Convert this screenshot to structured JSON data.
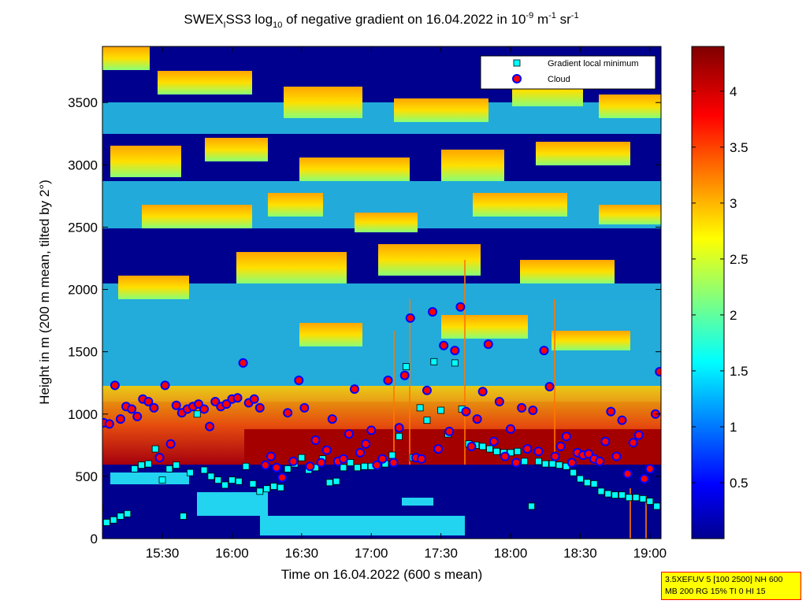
{
  "figure": {
    "title_main": "SWEX",
    "title_sub1": "I",
    "title_mid": "SS3 log",
    "title_sub2": "10",
    "title_rest": " of negative gradient on 16.04.2022 in 10",
    "title_exp1": "-9",
    "title_m": " m",
    "title_exp2": "-1",
    "title_sr": " sr",
    "title_exp3": "-1",
    "info_line1": "3.5XEFUV 5 [100 2500] NH 600",
    "info_line2": "MB 200 RG 15% TI 0 HI 15"
  },
  "chart_data": {
    "type": "heatmap",
    "xlabel": "Time on 16.04.2022 (600 s mean)",
    "ylabel": "Height in m (200 m mean, tilted by 2°)",
    "x_range_hours": [
      15.07,
      19.08
    ],
    "ylim": [
      0,
      3950
    ],
    "x_ticks": [
      "15:30",
      "16:00",
      "16:30",
      "17:00",
      "17:30",
      "18:00",
      "18:30",
      "19:00"
    ],
    "x_tick_hours": [
      15.5,
      16.0,
      16.5,
      17.0,
      17.5,
      18.0,
      18.5,
      19.0
    ],
    "y_ticks": [
      0,
      500,
      1000,
      1500,
      2000,
      2500,
      3000,
      3500
    ],
    "colorbar": {
      "range": [
        0,
        4.4
      ],
      "ticks": [
        "0.5",
        "1",
        "1.5",
        "2",
        "2.5",
        "3",
        "3.5",
        "4"
      ],
      "tick_values": [
        0.5,
        1,
        1.5,
        2,
        2.5,
        3,
        3.5,
        4
      ],
      "colormap": "jet"
    },
    "legend": {
      "position": "top-right",
      "entries": [
        "Gradient local minimum",
        "Cloud"
      ]
    },
    "colors": {
      "cloud_fill": "#ff0000",
      "cloud_edge": "#0000ff",
      "gradient_fill": "#00ffff",
      "low_background": "#00008f"
    },
    "series": [
      {
        "name": "Cloud",
        "hours": [
          15.08,
          15.12,
          15.16,
          15.2,
          15.24,
          15.28,
          15.32,
          15.36,
          15.4,
          15.44,
          15.48,
          15.52,
          15.56,
          15.6,
          15.64,
          15.68,
          15.72,
          15.76,
          15.8,
          15.84,
          15.88,
          15.92,
          15.96,
          16.0,
          16.04,
          16.08,
          16.12,
          16.16,
          16.2,
          16.24,
          16.28,
          16.32,
          16.36,
          16.4,
          16.44,
          16.48,
          16.52,
          16.56,
          16.6,
          16.64,
          16.68,
          16.72,
          16.76,
          16.8,
          16.84,
          16.88,
          16.92,
          16.96,
          17.0,
          17.04,
          17.08,
          17.12,
          17.16,
          17.2,
          17.24,
          17.28,
          17.32,
          17.36,
          17.4,
          17.44,
          17.48,
          17.52,
          17.56,
          17.6,
          17.64,
          17.68,
          17.72,
          17.76,
          17.8,
          17.84,
          17.88,
          17.92,
          17.96,
          18.0,
          18.04,
          18.08,
          18.12,
          18.16,
          18.2,
          18.24,
          18.28,
          18.32,
          18.36,
          18.4,
          18.44,
          18.48,
          18.52,
          18.56,
          18.6,
          18.64,
          18.68,
          18.72,
          18.76,
          18.8,
          18.84,
          18.88,
          18.92,
          18.96,
          19.0,
          19.04,
          19.07
        ],
        "heights": [
          930,
          920,
          1230,
          960,
          1060,
          1040,
          980,
          1120,
          1100,
          1050,
          650,
          1230,
          760,
          1070,
          1010,
          1040,
          1060,
          1080,
          1040,
          900,
          1100,
          1060,
          1080,
          1120,
          1130,
          1410,
          1090,
          1120,
          1050,
          590,
          660,
          570,
          490,
          1010,
          620,
          1270,
          1050,
          580,
          790,
          610,
          710,
          960,
          620,
          640,
          840,
          1200,
          690,
          760,
          870,
          590,
          640,
          1270,
          610,
          890,
          1310,
          1770,
          650,
          640,
          1190,
          1820,
          720,
          1550,
          860,
          1510,
          1860,
          1020,
          740,
          960,
          1180,
          1560,
          780,
          1100,
          660,
          880,
          610,
          1050,
          720,
          1030,
          700,
          1510,
          1220,
          660,
          740,
          820,
          610,
          690,
          670,
          680,
          640,
          620,
          780,
          1020,
          660,
          950,
          520,
          770,
          830,
          480,
          560,
          1000,
          1340
        ]
      },
      {
        "name": "Gradient local minimum",
        "hours": [
          15.05,
          15.1,
          15.15,
          15.2,
          15.25,
          15.3,
          15.35,
          15.4,
          15.45,
          15.5,
          15.55,
          15.6,
          15.65,
          15.7,
          15.75,
          15.8,
          15.85,
          15.9,
          15.95,
          16.0,
          16.05,
          16.1,
          16.15,
          16.2,
          16.25,
          16.3,
          16.35,
          16.4,
          16.45,
          16.5,
          16.55,
          16.6,
          16.65,
          16.7,
          16.75,
          16.8,
          16.85,
          16.9,
          16.95,
          17.0,
          17.05,
          17.1,
          17.15,
          17.2,
          17.25,
          17.3,
          17.35,
          17.4,
          17.45,
          17.5,
          17.55,
          17.6,
          17.65,
          17.7,
          17.75,
          17.8,
          17.85,
          17.9,
          17.95,
          18.0,
          18.05,
          18.1,
          18.15,
          18.2,
          18.25,
          18.3,
          18.35,
          18.4,
          18.45,
          18.5,
          18.55,
          18.6,
          18.65,
          18.7,
          18.75,
          18.8,
          18.85,
          18.9,
          18.95,
          19.0,
          19.05
        ],
        "heights": [
          240,
          130,
          150,
          180,
          200,
          560,
          590,
          600,
          720,
          470,
          560,
          590,
          180,
          530,
          1000,
          550,
          500,
          470,
          430,
          470,
          460,
          580,
          440,
          380,
          400,
          420,
          410,
          560,
          600,
          650,
          550,
          570,
          640,
          450,
          460,
          570,
          610,
          570,
          580,
          580,
          590,
          600,
          670,
          820,
          1380,
          650,
          1050,
          950,
          1420,
          1030,
          840,
          1410,
          1040,
          760,
          750,
          740,
          720,
          700,
          690,
          690,
          700,
          620,
          260,
          620,
          600,
          600,
          590,
          580,
          530,
          480,
          450,
          440,
          380,
          360,
          350,
          350,
          330,
          330,
          320,
          300,
          260
        ]
      }
    ]
  }
}
